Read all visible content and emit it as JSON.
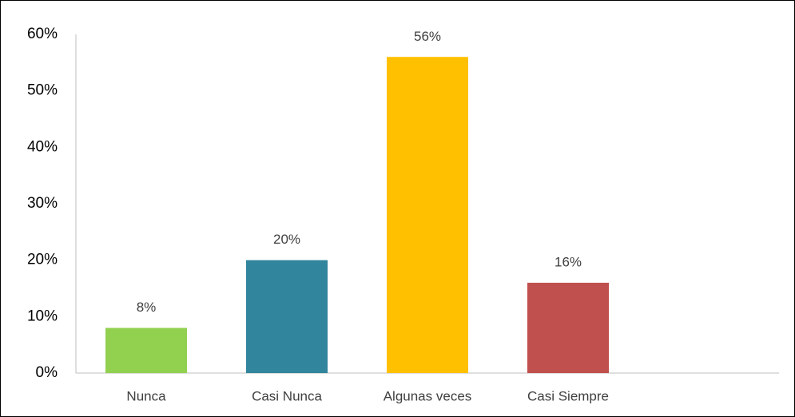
{
  "chart_data": {
    "type": "bar",
    "categories": [
      "Nunca",
      "Casi Nunca",
      "Algunas veces",
      "Casi Siempre"
    ],
    "values": [
      8,
      20,
      56,
      16
    ],
    "value_labels": [
      "8%",
      "20%",
      "56%",
      "16%"
    ],
    "colors": [
      "#92d050",
      "#31859c",
      "#ffc000",
      "#c0504d"
    ],
    "ylim": [
      0,
      60
    ],
    "yticks": [
      {
        "value": 0,
        "label": "0%"
      },
      {
        "value": 10,
        "label": "10%"
      },
      {
        "value": 20,
        "label": "20%"
      },
      {
        "value": 30,
        "label": "30%"
      },
      {
        "value": 40,
        "label": "40%"
      },
      {
        "value": 50,
        "label": "50%"
      },
      {
        "value": 60,
        "label": "60%"
      }
    ],
    "grid": false
  }
}
